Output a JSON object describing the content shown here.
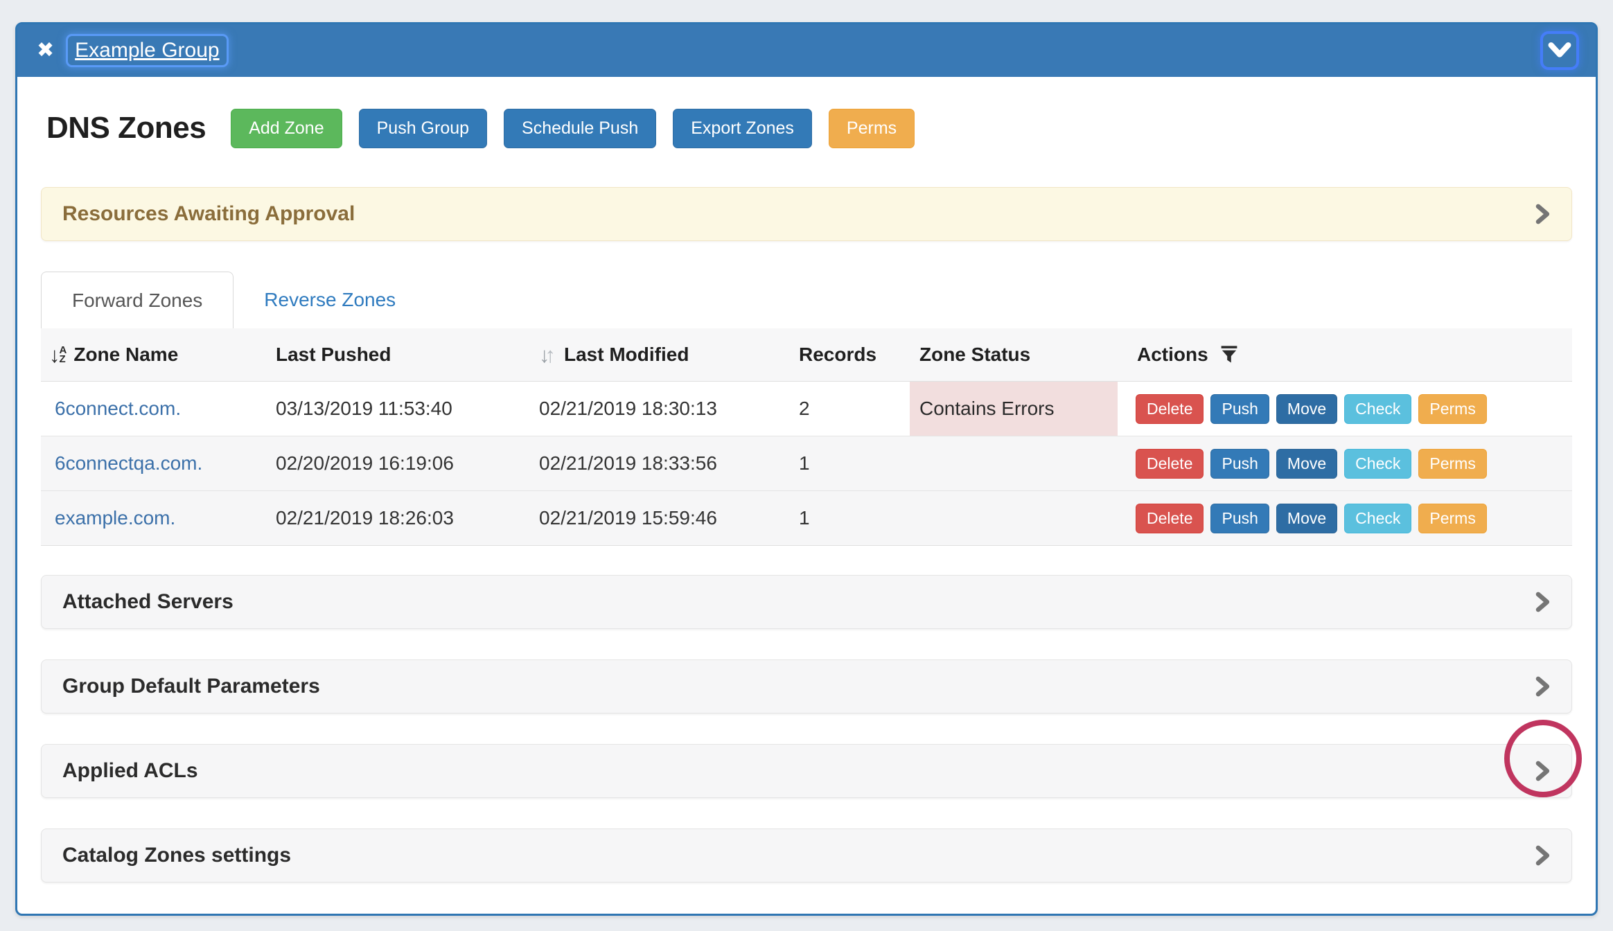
{
  "window": {
    "title": "Example Group"
  },
  "icons": {
    "close": "✖",
    "sort_alpha_arrow": "↓",
    "sort_alpha_top": "A",
    "sort_alpha_bottom": "Z",
    "sort_down": "↓",
    "sort_up": "↑"
  },
  "toolbar": {
    "title": "DNS Zones",
    "buttons": [
      {
        "label": "Add Zone",
        "color": "#5cb85c",
        "border": "#4cae4c"
      },
      {
        "label": "Push Group",
        "color": "#337ab7",
        "border": "#2e6da4"
      },
      {
        "label": "Schedule Push",
        "color": "#337ab7",
        "border": "#2e6da4"
      },
      {
        "label": "Export Zones",
        "color": "#337ab7",
        "border": "#2e6da4"
      },
      {
        "label": "Perms",
        "color": "#f0ad4e",
        "border": "#eea236"
      }
    ]
  },
  "alert": {
    "label": "Resources Awaiting Approval"
  },
  "tabs": [
    {
      "label": "Forward Zones",
      "active": true
    },
    {
      "label": "Reverse Zones",
      "active": false
    }
  ],
  "table": {
    "columns": [
      "Zone Name",
      "Last Pushed",
      "Last Modified",
      "Records",
      "Zone Status",
      "Actions"
    ],
    "rows": [
      {
        "zone": "6connect.com.",
        "last_pushed": "03/13/2019 11:53:40",
        "last_modified": "02/21/2019 18:30:13",
        "records": "2",
        "status": "Contains Errors"
      },
      {
        "zone": "6connectqa.com.",
        "last_pushed": "02/20/2019 16:19:06",
        "last_modified": "02/21/2019 18:33:56",
        "records": "1",
        "status": ""
      },
      {
        "zone": "example.com.",
        "last_pushed": "02/21/2019 18:26:03",
        "last_modified": "02/21/2019 15:59:46",
        "records": "1",
        "status": ""
      }
    ],
    "row_actions": [
      {
        "label": "Delete",
        "color": "#d9534f",
        "border": "#d43f3a"
      },
      {
        "label": "Push",
        "color": "#337ab7",
        "border": "#2e6da4"
      },
      {
        "label": "Move",
        "color": "#2e6da4",
        "border": "#2a6496"
      },
      {
        "label": "Check",
        "color": "#5bc0de",
        "border": "#46b8da"
      },
      {
        "label": "Perms",
        "color": "#f0ad4e",
        "border": "#eea236"
      }
    ],
    "status_error_bg": "#f2dede"
  },
  "panels": [
    {
      "label": "Attached Servers"
    },
    {
      "label": "Group Default Parameters"
    },
    {
      "label": "Applied ACLs",
      "annotated": true
    },
    {
      "label": "Catalog Zones settings"
    }
  ],
  "annotation": {
    "shape": "circle",
    "color": "#c0355f"
  }
}
